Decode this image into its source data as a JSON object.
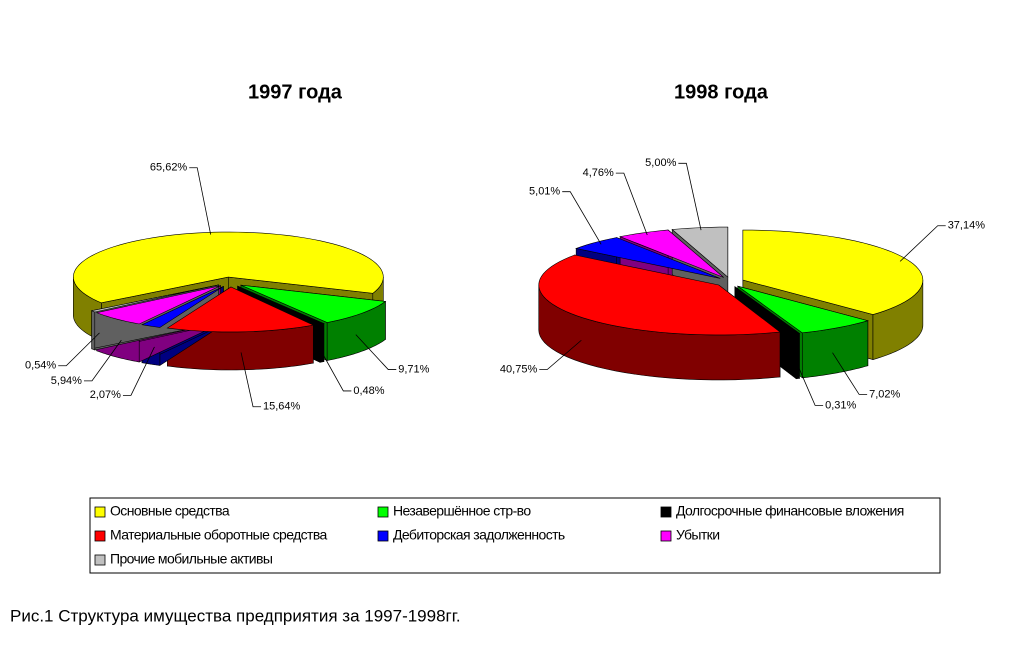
{
  "chart_data": [
    {
      "type": "pie",
      "title": "1997 года",
      "values": [
        65.62,
        9.71,
        0.48,
        15.64,
        2.07,
        5.94,
        0.54
      ],
      "value_labels": [
        "65,62%",
        "9,71%",
        "0,48%",
        "15,64%",
        "2,07%",
        "5,94%",
        "0,54%"
      ]
    },
    {
      "type": "pie",
      "title": "1998 года",
      "values": [
        37.14,
        7.02,
        0.31,
        40.75,
        5.01,
        4.76,
        5.0
      ],
      "value_labels": [
        "37,14%",
        "7,02%",
        "0,31%",
        "40,75%",
        "5,01%",
        "4,76%",
        "5,00%"
      ]
    }
  ],
  "legend": {
    "position": "bottom",
    "entries": [
      {
        "name": "Основные средства",
        "color": "#ffff00"
      },
      {
        "name": "Незавершённое стр-во",
        "color": "#00ff00"
      },
      {
        "name": "Долгосрочные финансовые вложения",
        "color": "#000000"
      },
      {
        "name": "Материальные оборотные средства",
        "color": "#ff0000"
      },
      {
        "name": "Дебиторская задолженность",
        "color": "#0000ff"
      },
      {
        "name": "Убытки",
        "color": "#ff00ff"
      },
      {
        "name": "Прочие мобильные активы",
        "color": "#c0c0c0"
      }
    ]
  },
  "caption": "Рис.1 Структура имущества предприятия за 1997-1998гг."
}
